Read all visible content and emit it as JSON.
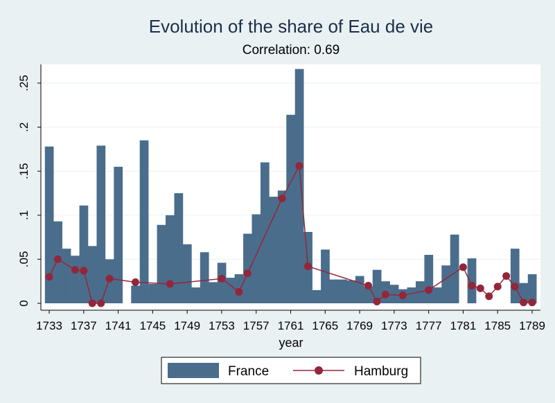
{
  "chart_data": {
    "type": "bar+line",
    "title": "Evolution of the share of Eau de vie",
    "subtitle": "Correlation: 0.69",
    "xlabel": "year",
    "ylabel": "",
    "xlim": [
      1732,
      1790
    ],
    "ylim": [
      0,
      0.27
    ],
    "x_ticks": [
      1733,
      1737,
      1741,
      1745,
      1749,
      1753,
      1757,
      1761,
      1765,
      1769,
      1773,
      1777,
      1781,
      1785,
      1789
    ],
    "y_ticks": [
      {
        "value": 0,
        "label": "0"
      },
      {
        "value": 0.05,
        "label": ".05"
      },
      {
        "value": 0.1,
        "label": ".1"
      },
      {
        "value": 0.15,
        "label": ".15"
      },
      {
        "value": 0.2,
        "label": ".2"
      },
      {
        "value": 0.25,
        "label": ".25"
      }
    ],
    "grid": "horizontal",
    "legend_position": "bottom",
    "colors": {
      "France": "#4a6d8c",
      "Hamburg": "#94263a",
      "plot_bg": "#ffffff",
      "page_bg": "#eaf1f3"
    },
    "series": [
      {
        "name": "France",
        "type": "bar",
        "points": [
          {
            "x": 1733,
            "y": 0.178
          },
          {
            "x": 1734,
            "y": 0.093
          },
          {
            "x": 1735,
            "y": 0.062
          },
          {
            "x": 1736,
            "y": 0.054
          },
          {
            "x": 1737,
            "y": 0.111
          },
          {
            "x": 1738,
            "y": 0.065
          },
          {
            "x": 1739,
            "y": 0.179
          },
          {
            "x": 1740,
            "y": 0.05
          },
          {
            "x": 1741,
            "y": 0.155
          },
          {
            "x": 1743,
            "y": 0.02
          },
          {
            "x": 1744,
            "y": 0.185
          },
          {
            "x": 1745,
            "y": 0.022
          },
          {
            "x": 1746,
            "y": 0.089
          },
          {
            "x": 1747,
            "y": 0.1
          },
          {
            "x": 1748,
            "y": 0.125
          },
          {
            "x": 1749,
            "y": 0.067
          },
          {
            "x": 1750,
            "y": 0.018
          },
          {
            "x": 1751,
            "y": 0.058
          },
          {
            "x": 1752,
            "y": 0.024
          },
          {
            "x": 1753,
            "y": 0.046
          },
          {
            "x": 1754,
            "y": 0.029
          },
          {
            "x": 1755,
            "y": 0.033
          },
          {
            "x": 1756,
            "y": 0.079
          },
          {
            "x": 1757,
            "y": 0.101
          },
          {
            "x": 1758,
            "y": 0.16
          },
          {
            "x": 1759,
            "y": 0.121
          },
          {
            "x": 1760,
            "y": 0.128
          },
          {
            "x": 1761,
            "y": 0.214
          },
          {
            "x": 1762,
            "y": 0.266
          },
          {
            "x": 1763,
            "y": 0.081
          },
          {
            "x": 1764,
            "y": 0.015
          },
          {
            "x": 1765,
            "y": 0.061
          },
          {
            "x": 1766,
            "y": 0.027
          },
          {
            "x": 1767,
            "y": 0.027
          },
          {
            "x": 1768,
            "y": 0.026
          },
          {
            "x": 1769,
            "y": 0.031
          },
          {
            "x": 1770,
            "y": 0.019
          },
          {
            "x": 1771,
            "y": 0.038
          },
          {
            "x": 1772,
            "y": 0.025
          },
          {
            "x": 1773,
            "y": 0.021
          },
          {
            "x": 1774,
            "y": 0.016
          },
          {
            "x": 1775,
            "y": 0.018
          },
          {
            "x": 1776,
            "y": 0.025
          },
          {
            "x": 1777,
            "y": 0.055
          },
          {
            "x": 1778,
            "y": 0.018
          },
          {
            "x": 1779,
            "y": 0.043
          },
          {
            "x": 1780,
            "y": 0.078
          },
          {
            "x": 1782,
            "y": 0.051
          },
          {
            "x": 1787,
            "y": 0.062
          },
          {
            "x": 1788,
            "y": 0.023
          },
          {
            "x": 1789,
            "y": 0.033
          }
        ]
      },
      {
        "name": "Hamburg",
        "type": "line",
        "points": [
          {
            "x": 1733,
            "y": 0.03
          },
          {
            "x": 1734,
            "y": 0.05
          },
          {
            "x": 1736,
            "y": 0.038
          },
          {
            "x": 1737,
            "y": 0.037
          },
          {
            "x": 1738,
            "y": 0.0
          },
          {
            "x": 1739,
            "y": 0.0
          },
          {
            "x": 1740,
            "y": 0.028
          },
          {
            "x": 1743,
            "y": 0.024
          },
          {
            "x": 1747,
            "y": 0.022
          },
          {
            "x": 1753,
            "y": 0.028
          },
          {
            "x": 1755,
            "y": 0.013
          },
          {
            "x": 1756,
            "y": 0.034
          },
          {
            "x": 1760,
            "y": 0.119
          },
          {
            "x": 1762,
            "y": 0.156
          },
          {
            "x": 1763,
            "y": 0.042
          },
          {
            "x": 1770,
            "y": 0.02
          },
          {
            "x": 1771,
            "y": 0.002
          },
          {
            "x": 1772,
            "y": 0.01
          },
          {
            "x": 1774,
            "y": 0.009
          },
          {
            "x": 1777,
            "y": 0.015
          },
          {
            "x": 1781,
            "y": 0.041
          },
          {
            "x": 1782,
            "y": 0.02
          },
          {
            "x": 1783,
            "y": 0.017
          },
          {
            "x": 1784,
            "y": 0.008
          },
          {
            "x": 1785,
            "y": 0.019
          },
          {
            "x": 1786,
            "y": 0.031
          },
          {
            "x": 1787,
            "y": 0.019
          },
          {
            "x": 1788,
            "y": 0.001
          },
          {
            "x": 1789,
            "y": 0.001
          }
        ]
      }
    ]
  }
}
